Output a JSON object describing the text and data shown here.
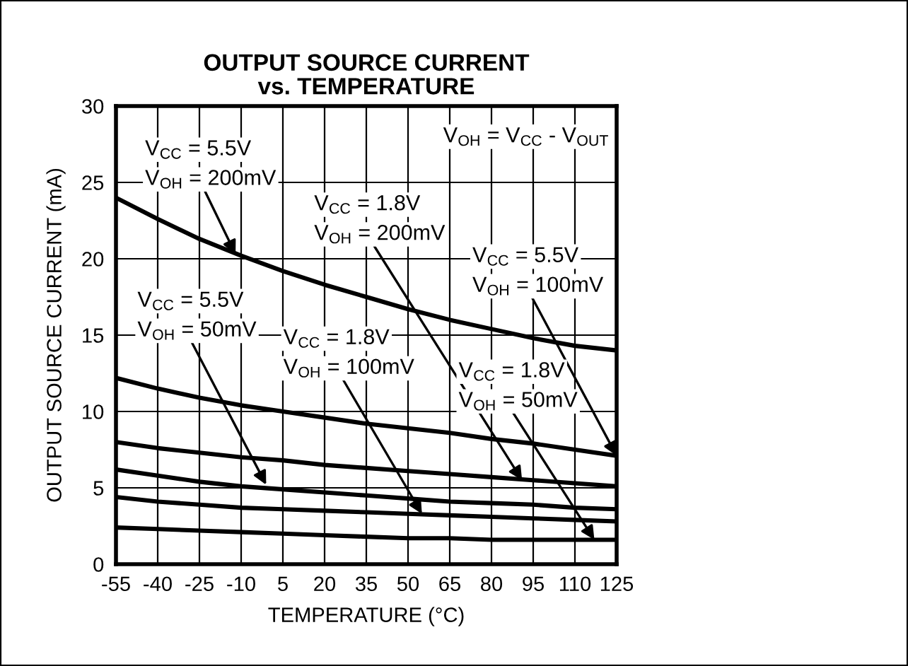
{
  "chart_data": {
    "type": "line",
    "title": "OUTPUT SOURCE CURRENT\nvs. TEMPERATURE",
    "xlabel": "TEMPERATURE (°C)",
    "ylabel": "OUTPUT SOURCE CURRENT (mA)",
    "x": [
      -55,
      -40,
      -25,
      -10,
      5,
      20,
      35,
      50,
      65,
      80,
      95,
      110,
      125
    ],
    "series": [
      {
        "color": "#000000",
        "values": [
          24,
          22.6,
          21.3,
          20.2,
          19.2,
          18.3,
          17.5,
          16.7,
          16.0,
          15.4,
          14.8,
          14.3,
          14.0
        ]
      },
      {
        "color": "#000000",
        "values": [
          12.2,
          11.5,
          10.9,
          10.4,
          10.0,
          9.6,
          9.2,
          8.9,
          8.6,
          8.2,
          7.9,
          7.5,
          7.1
        ]
      },
      {
        "color": "#000000",
        "values": [
          8.0,
          7.6,
          7.3,
          7.0,
          6.8,
          6.5,
          6.3,
          6.1,
          5.9,
          5.7,
          5.5,
          5.3,
          5.1
        ]
      },
      {
        "color": "#000000",
        "values": [
          6.2,
          5.8,
          5.4,
          5.1,
          4.9,
          4.7,
          4.5,
          4.3,
          4.1,
          4.0,
          3.9,
          3.7,
          3.6
        ]
      },
      {
        "color": "#000000",
        "values": [
          4.4,
          4.1,
          3.9,
          3.7,
          3.6,
          3.5,
          3.4,
          3.3,
          3.2,
          3.1,
          3.0,
          2.9,
          2.8
        ]
      },
      {
        "color": "#000000",
        "values": [
          2.4,
          2.3,
          2.2,
          2.1,
          2.0,
          1.9,
          1.8,
          1.7,
          1.7,
          1.6,
          1.6,
          1.6,
          1.6
        ]
      }
    ],
    "xlim": [
      -55,
      125
    ],
    "xticks": [
      -55,
      -40,
      -25,
      -10,
      5,
      20,
      35,
      50,
      65,
      80,
      95,
      110,
      125
    ],
    "ylim": [
      0,
      30
    ],
    "yticks": [
      0,
      5,
      10,
      15,
      20,
      25,
      30
    ],
    "grid": true,
    "marker": "none",
    "line_style": "solid",
    "legend": false,
    "annotations": [
      "V$_{CC}$ = 5.5V",
      {
        "text": "V$_{OH}$ = 200mV",
        "x": -12,
        "y": 20.3
      },
      "V$_{CC}$ = 1.8V",
      {
        "text": "V$_{OH}$ = 200mV",
        "x": 91,
        "y": 5.5
      },
      "V$_{CC}$ = 5.5V",
      {
        "text": "V$_{OH}$ = 100mV",
        "x": 125,
        "y": 7.1
      },
      "V$_{CC}$ = 5.5V",
      {
        "text": "V$_{OH}$ = 50mV",
        "x": -1,
        "y": 5.2
      },
      "V$_{CC}$ = 1.8V",
      {
        "text": "V$_{OH}$ = 100mV",
        "x": 55,
        "y": 3.3
      },
      "V$_{CC}$ = 1.8V",
      {
        "text": "V$_{OH}$ = 50mV",
        "x": 117,
        "y": 1.6
      },
      "V$_{OH}$ = V$_{CC}$ - V$_{OUT}$"
    ]
  }
}
